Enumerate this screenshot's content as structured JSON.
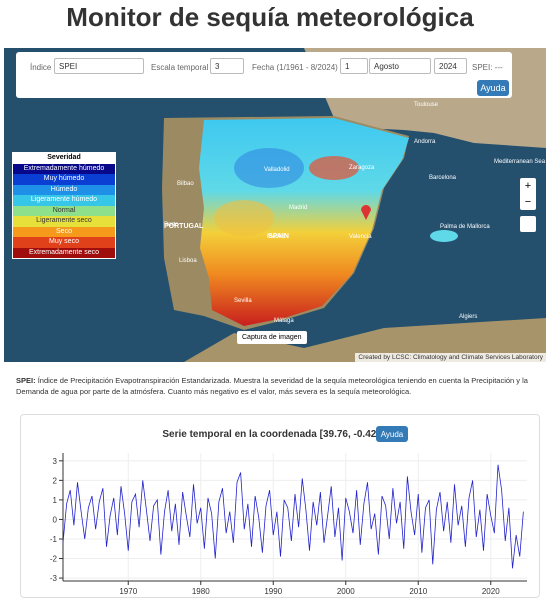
{
  "header": {
    "title": "Monitor de sequía meteorológica"
  },
  "controls": {
    "index_label": "Índice",
    "index_value": "SPEI",
    "scale_label": "Escala temporal",
    "scale_value": "3",
    "date_label": "Fecha (1/1961 - 8/2024)",
    "month_number": "1",
    "month_name": "Agosto",
    "year": "2024",
    "spei_readout": "SPEI: ---",
    "help": "Ayuda"
  },
  "map": {
    "legend": {
      "title": "Severidad",
      "items": [
        {
          "label": "Extremadamente húmedo",
          "color": "#08088a"
        },
        {
          "label": "Muy húmedo",
          "color": "#0b3fd4"
        },
        {
          "label": "Húmedo",
          "color": "#1e90e8"
        },
        {
          "label": "Ligeramente húmedo",
          "color": "#35c6e8"
        },
        {
          "label": "Normal",
          "color": "#8fe08a"
        },
        {
          "label": "Ligeramente seco",
          "color": "#e8e03a"
        },
        {
          "label": "Seco",
          "color": "#f59a1a"
        },
        {
          "label": "Muy seco",
          "color": "#e0401a"
        },
        {
          "label": "Extremadamente seco",
          "color": "#a00d0d"
        }
      ]
    },
    "labels": [
      "Porto",
      "Madrid",
      "Madrid",
      "Valladolid",
      "Zaragoza",
      "Barcelona",
      "Valencia",
      "Sevilla",
      "Málaga",
      "Bilbao",
      "Lisboa",
      "Andorra",
      "Toulouse",
      "Palma de Mallorca",
      "Algiers",
      "Mediterranean Sea",
      "SPAIN",
      "PORTUGAL"
    ],
    "capture": "Captura de imagen",
    "attribution": "Created by LCSC: Climatology and Climate Services Laboratory"
  },
  "description": {
    "term": "SPEI:",
    "text": "Índice de Precipitación Evapotranspiración Estandarizada. Muestra la severidad de la sequía meteorológica teniendo en cuenta la Precipitación y la Demanda de agua por parte de la atmósfera. Cuanto más negativo es el valor, más severa es la sequía meteorológica."
  },
  "chart_data": {
    "type": "line",
    "title": "Serie temporal en la coordenada [39.76, -0.42]",
    "help": "Ayuda",
    "x": [
      1961,
      1961.5,
      1962,
      1962.5,
      1963,
      1963.5,
      1964,
      1964.5,
      1965,
      1965.5,
      1966,
      1966.5,
      1967,
      1967.5,
      1968,
      1968.5,
      1969,
      1969.5,
      1970,
      1970.5,
      1971,
      1971.5,
      1972,
      1972.5,
      1973,
      1973.5,
      1974,
      1974.5,
      1975,
      1975.5,
      1976,
      1976.5,
      1977,
      1977.5,
      1978,
      1978.5,
      1979,
      1979.5,
      1980,
      1980.5,
      1981,
      1981.5,
      1982,
      1982.5,
      1983,
      1983.5,
      1984,
      1984.5,
      1985,
      1985.5,
      1986,
      1986.5,
      1987,
      1987.5,
      1988,
      1988.5,
      1989,
      1989.5,
      1990,
      1990.5,
      1991,
      1991.5,
      1992,
      1992.5,
      1993,
      1993.5,
      1994,
      1994.5,
      1995,
      1995.5,
      1996,
      1996.5,
      1997,
      1997.5,
      1998,
      1998.5,
      1999,
      1999.5,
      2000,
      2000.5,
      2001,
      2001.5,
      2002,
      2002.5,
      2003,
      2003.5,
      2004,
      2004.5,
      2005,
      2005.5,
      2006,
      2006.5,
      2007,
      2007.5,
      2008,
      2008.5,
      2009,
      2009.5,
      2010,
      2010.5,
      2011,
      2011.5,
      2012,
      2012.5,
      2013,
      2013.5,
      2014,
      2014.5,
      2015,
      2015.5,
      2016,
      2016.5,
      2017,
      2017.5,
      2018,
      2018.5,
      2019,
      2019.5,
      2020,
      2020.5,
      2021,
      2021.5,
      2022,
      2022.5,
      2023,
      2023.5,
      2024,
      2024.5
    ],
    "series": [
      {
        "name": "SPEI",
        "color": "#2222cc",
        "values": [
          -1.2,
          0.8,
          1.5,
          -0.3,
          1.9,
          0.4,
          -1.0,
          0.6,
          1.2,
          -0.5,
          0.9,
          1.6,
          -1.4,
          0.2,
          1.1,
          -0.8,
          1.7,
          0.3,
          -1.6,
          0.9,
          1.3,
          -0.4,
          2.0,
          0.5,
          -1.1,
          0.7,
          1.0,
          -1.8,
          0.4,
          1.5,
          -0.6,
          0.8,
          -1.3,
          1.4,
          0.2,
          -0.9,
          1.8,
          -0.2,
          0.6,
          -1.5,
          1.1,
          0.3,
          -2.0,
          0.9,
          1.6,
          -0.7,
          0.4,
          -1.2,
          1.9,
          2.4,
          -0.5,
          0.8,
          -1.4,
          1.2,
          0.1,
          -1.7,
          0.7,
          1.5,
          -0.8,
          0.4,
          -1.9,
          1.0,
          0.6,
          -1.1,
          1.3,
          -0.4,
          2.1,
          0.5,
          -1.6,
          0.9,
          -0.3,
          1.4,
          -1.2,
          0.2,
          1.7,
          -0.9,
          0.6,
          -2.1,
          1.1,
          0.4,
          -0.7,
          1.5,
          -1.3,
          0.8,
          1.9,
          -0.5,
          0.3,
          -1.8,
          1.2,
          0.7,
          -1.0,
          1.6,
          -0.2,
          0.9,
          -1.5,
          2.2,
          0.4,
          -0.8,
          1.3,
          -1.7,
          0.6,
          1.0,
          -2.3,
          0.5,
          1.4,
          -0.6,
          0.9,
          -1.2,
          1.8,
          -0.3,
          0.7,
          -1.4,
          1.1,
          2.0,
          -0.9,
          0.5,
          -1.6,
          1.3,
          0.2,
          -0.7,
          2.8,
          1.5,
          -1.1,
          0.6,
          -2.5,
          -0.8,
          -1.9,
          0.4
        ]
      }
    ],
    "xlim": [
      1961,
      2025
    ],
    "xticks": [
      1970,
      1980,
      1990,
      2000,
      2010,
      2020
    ],
    "ylim": [
      -3.15,
      3.4
    ],
    "yticks": [
      -3,
      -2,
      -1,
      0,
      1,
      2,
      3
    ],
    "grid": true
  }
}
